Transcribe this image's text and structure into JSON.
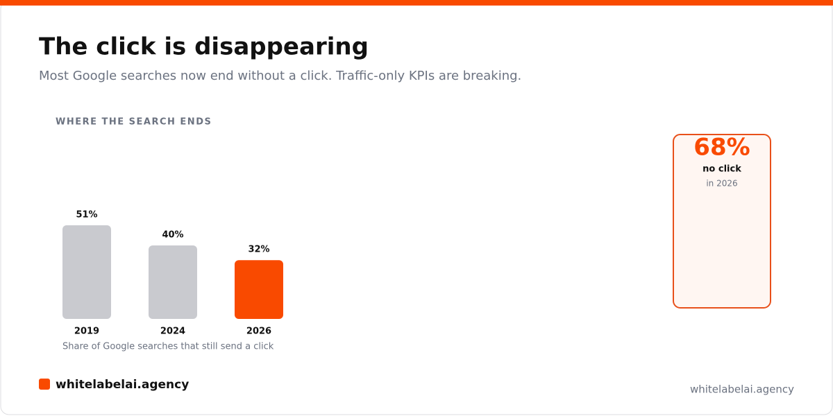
{
  "header": {
    "title": "The click is disappearing",
    "subtitle": "Most Google searches now end without a click. Traffic-only KPIs are breaking."
  },
  "chart_data": {
    "type": "bar",
    "title": "WHERE THE SEARCH ENDS",
    "categories": [
      "2019",
      "2024",
      "2026"
    ],
    "values": [
      51,
      40,
      32
    ],
    "value_labels": [
      "51%",
      "40%",
      "32%"
    ],
    "colors": [
      "#c9cacf",
      "#c9cacf",
      "#f94a00"
    ],
    "caption": "Share of Google searches that still send a click"
  },
  "callout": {
    "headline": "68%",
    "label": "no click",
    "note": "in 2026"
  },
  "footer": {
    "brand": "whitelabelai.agency",
    "url": "whitelabelai.agency"
  }
}
